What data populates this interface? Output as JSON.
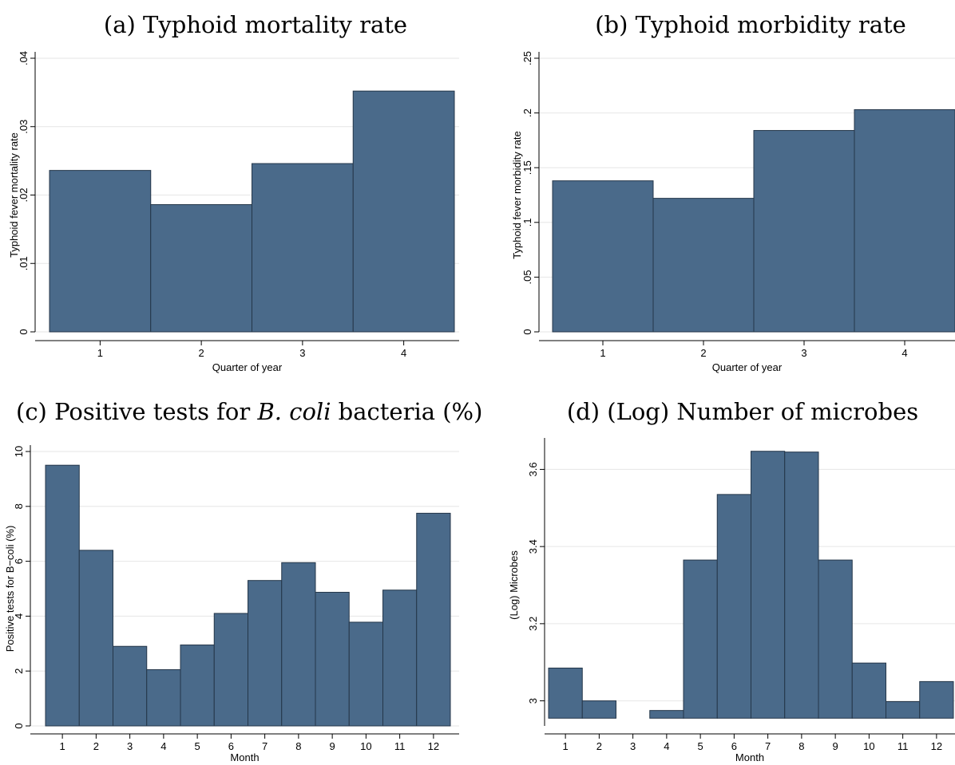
{
  "chart_data": [
    {
      "type": "bar",
      "panel_title": {
        "prefix": "(a) Typhoid mortality rate",
        "italic": "",
        "suffix": ""
      },
      "categories": [
        "1",
        "2",
        "3",
        "4"
      ],
      "values": [
        0.0236,
        0.0186,
        0.0246,
        0.0352
      ],
      "xlabel": "Quarter of year",
      "ylabel": "Typhoid fever mortality rate",
      "ylim": [
        0,
        0.04
      ],
      "yticks": [
        0,
        0.01,
        0.02,
        0.03,
        0.04
      ],
      "ytick_labels": [
        "0",
        ".01",
        ".02",
        ".03",
        ".04"
      ],
      "bar_base": 0,
      "grid": true
    },
    {
      "type": "bar",
      "panel_title": {
        "prefix": "(b) Typhoid morbidity rate",
        "italic": "",
        "suffix": ""
      },
      "categories": [
        "1",
        "2",
        "3",
        "4"
      ],
      "values": [
        0.138,
        0.122,
        0.184,
        0.203
      ],
      "xlabel": "Quarter of year",
      "ylabel": "Typhoid fever morbidity rate",
      "ylim": [
        0,
        0.25
      ],
      "yticks": [
        0,
        0.05,
        0.1,
        0.15,
        0.2,
        0.25
      ],
      "ytick_labels": [
        "0",
        ".05",
        ".1",
        ".15",
        ".2",
        ".25"
      ],
      "bar_base": 0,
      "grid": true
    },
    {
      "type": "bar",
      "panel_title": {
        "prefix": "(c) Positive tests for ",
        "italic": "B. coli",
        "suffix": " bacteria (%)"
      },
      "categories": [
        "1",
        "2",
        "3",
        "4",
        "5",
        "6",
        "7",
        "8",
        "9",
        "10",
        "11",
        "12"
      ],
      "values": [
        9.5,
        6.4,
        2.9,
        2.05,
        2.95,
        4.1,
        5.3,
        5.95,
        4.87,
        3.78,
        4.95,
        7.75
      ],
      "xlabel": "Month",
      "ylabel": "Positive tests for B−coli (%)",
      "ylim": [
        0,
        10
      ],
      "yticks": [
        0,
        2,
        4,
        6,
        8,
        10
      ],
      "ytick_labels": [
        "0",
        "2",
        "4",
        "6",
        "8",
        "10"
      ],
      "bar_base": 0,
      "grid": true
    },
    {
      "type": "bar",
      "panel_title": {
        "prefix": "(d) (Log) Number of microbes",
        "italic": "",
        "suffix": ""
      },
      "categories": [
        "1",
        "2",
        "3",
        "4",
        "5",
        "6",
        "7",
        "8",
        "9",
        "10",
        "11",
        "12"
      ],
      "values": [
        3.085,
        3.0,
        null,
        2.975,
        3.365,
        3.535,
        3.647,
        3.645,
        3.365,
        3.098,
        2.998,
        3.05
      ],
      "xlabel": "Month",
      "ylabel": "(Log) Microbes",
      "ylim": [
        2.935,
        3.665
      ],
      "yticks": [
        3,
        3.2,
        3.4,
        3.6
      ],
      "ytick_labels": [
        "3",
        "3.2",
        "3.4",
        "3.6"
      ],
      "bar_base": 2.955,
      "grid": true
    }
  ]
}
